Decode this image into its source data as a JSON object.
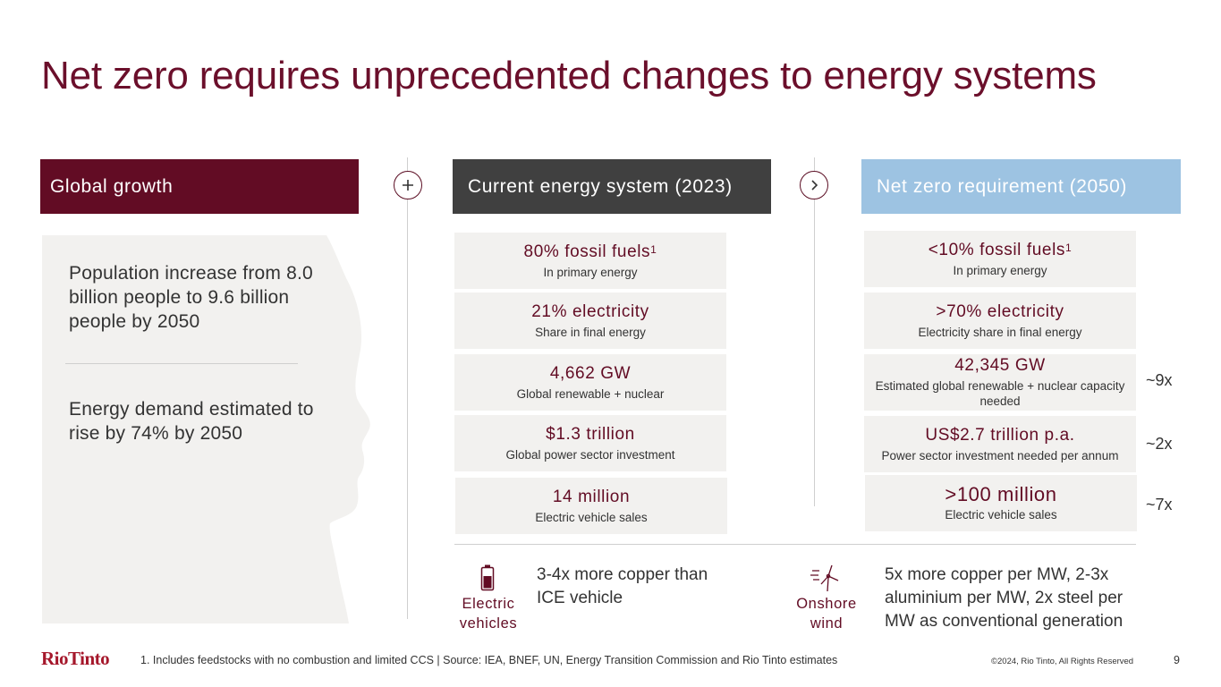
{
  "title": "Net zero requires unprecedented changes to energy systems",
  "headers": {
    "global": "Global growth",
    "current": "Current energy system (2023)",
    "netzero": "Net zero requirement (2050)"
  },
  "global_growth": {
    "population": "Population increase from 8.0 billion people to 9.6 billion people by 2050",
    "energy_demand": "Energy demand estimated to rise by 74% by 2050"
  },
  "current": [
    {
      "value": "80% fossil fuels",
      "sup": "1",
      "sub": "In primary energy"
    },
    {
      "value": "21% electricity",
      "sub": "Share in final energy"
    },
    {
      "value": "4,662 GW",
      "sub": "Global renewable + nuclear"
    },
    {
      "value": "$1.3 trillion",
      "sub": "Global power sector investment"
    },
    {
      "value": "14 million",
      "sub": "Electric vehicle sales"
    }
  ],
  "netzero": [
    {
      "value": "<10% fossil fuels",
      "sup": "1",
      "sub": "In primary energy"
    },
    {
      "value": ">70% electricity",
      "sub": "Electricity share in final energy"
    },
    {
      "value": "42,345 GW",
      "sub": "Estimated global renewable + nuclear capacity needed"
    },
    {
      "value": "US$2.7 trillion p.a.",
      "sub": "Power sector investment needed per annum"
    },
    {
      "value": ">100 million",
      "sub": "Electric vehicle sales"
    }
  ],
  "multipliers": [
    "~9x",
    "~2x",
    "~7x"
  ],
  "bottom": {
    "ev_label": "Electric vehicles",
    "ev_text": "3-4x more copper than ICE vehicle",
    "wind_label": "Onshore wind",
    "wind_text": "5x more copper per MW, 2-3x aluminium per MW, 2x steel per MW as conventional generation"
  },
  "footer": {
    "logo": "RioTinto",
    "note": "1. Includes feedstocks with no combustion and limited CCS | Source: IEA, BNEF, UN, Energy Transition Commission and Rio Tinto estimates",
    "copyright": "©2024, Rio Tinto, All Rights Reserved",
    "page": "9"
  },
  "colors": {
    "accent": "#620c24",
    "dark_header": "#404040",
    "light_blue": "#9dc3e2",
    "box_bg": "#f2f1ef"
  }
}
